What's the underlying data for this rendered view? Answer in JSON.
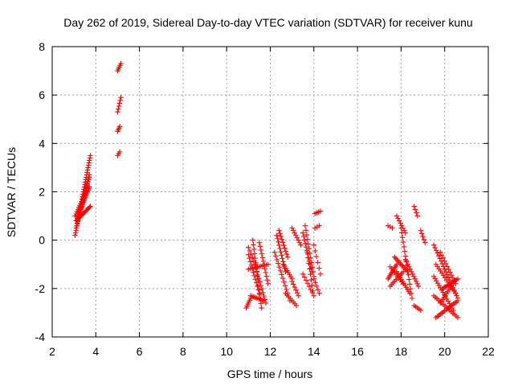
{
  "chart_data": {
    "type": "scatter",
    "title": "Day 262 of 2019, Sidereal Day-to-day VTEC variation (SDTVAR) for receiver kunu",
    "xlabel": "GPS time / hours",
    "ylabel": "SDTVAR / TECUs",
    "xlim": [
      2,
      22
    ],
    "ylim": [
      -4,
      8
    ],
    "xticks": [
      "2",
      "4",
      "6",
      "8",
      "10",
      "12",
      "14",
      "16",
      "18",
      "20",
      "22"
    ],
    "yticks": [
      "-4",
      "-2",
      "0",
      "2",
      "4",
      "6",
      "8"
    ],
    "grid": true,
    "marker": "+",
    "color": "#ff0000",
    "tracks": [
      {
        "x": [
          3.05,
          3.75
        ],
        "y": [
          0.2,
          3.5
        ],
        "n": 34
      },
      {
        "x": [
          3.1,
          3.7
        ],
        "y": [
          0.5,
          2.7
        ],
        "n": 26
      },
      {
        "x": [
          3.15,
          3.7
        ],
        "y": [
          0.9,
          2.2
        ],
        "n": 22
      },
      {
        "x": [
          3.1,
          3.75
        ],
        "y": [
          0.8,
          1.4
        ],
        "n": 16
      },
      {
        "x": [
          3.25,
          3.7
        ],
        "y": [
          1.2,
          2.6
        ],
        "n": 16
      },
      {
        "x": [
          3.05,
          3.35
        ],
        "y": [
          1.0,
          1.6
        ],
        "n": 8
      },
      {
        "x": [
          5.0,
          5.15
        ],
        "y": [
          7.0,
          7.3
        ],
        "n": 5
      },
      {
        "x": [
          5.0,
          5.15
        ],
        "y": [
          5.3,
          5.9
        ],
        "n": 6
      },
      {
        "x": [
          5.0,
          5.1
        ],
        "y": [
          4.5,
          4.7
        ],
        "n": 4
      },
      {
        "x": [
          5.0,
          5.1
        ],
        "y": [
          3.5,
          3.65
        ],
        "n": 3
      },
      {
        "x": [
          10.9,
          11.1
        ],
        "y": [
          -2.8,
          -2.4
        ],
        "n": 6
      },
      {
        "x": [
          11.0,
          11.5
        ],
        "y": [
          -0.6,
          -2.2
        ],
        "n": 12
      },
      {
        "x": [
          11.2,
          11.6
        ],
        "y": [
          0.0,
          -2.8
        ],
        "n": 16
      },
      {
        "x": [
          11.3,
          11.8
        ],
        "y": [
          -1.0,
          -2.6
        ],
        "n": 12
      },
      {
        "x": [
          11.5,
          11.9
        ],
        "y": [
          -0.1,
          -1.8
        ],
        "n": 12
      },
      {
        "x": [
          11.0,
          11.9
        ],
        "y": [
          -1.2,
          -1.0
        ],
        "n": 12
      },
      {
        "x": [
          11.1,
          11.7
        ],
        "y": [
          -2.3,
          -2.5
        ],
        "n": 10
      },
      {
        "x": [
          11.0,
          11.3
        ],
        "y": [
          -0.3,
          -1.0
        ],
        "n": 6
      },
      {
        "x": [
          12.2,
          12.9
        ],
        "y": [
          -0.5,
          -2.5
        ],
        "n": 14
      },
      {
        "x": [
          12.3,
          12.7
        ],
        "y": [
          0.2,
          -1.3
        ],
        "n": 12
      },
      {
        "x": [
          12.4,
          12.8
        ],
        "y": [
          0.4,
          -0.7
        ],
        "n": 10
      },
      {
        "x": [
          12.6,
          13.0
        ],
        "y": [
          -1.0,
          -1.6
        ],
        "n": 8
      },
      {
        "x": [
          12.7,
          13.2
        ],
        "y": [
          -2.2,
          -2.7
        ],
        "n": 8
      },
      {
        "x": [
          13.0,
          13.4
        ],
        "y": [
          0.5,
          -0.2
        ],
        "n": 8
      },
      {
        "x": [
          13.0,
          13.3
        ],
        "y": [
          -1.7,
          -2.3
        ],
        "n": 6
      },
      {
        "x": [
          13.5,
          13.9
        ],
        "y": [
          0.3,
          -1.3
        ],
        "n": 12
      },
      {
        "x": [
          13.6,
          14.0
        ],
        "y": [
          0.6,
          -1.5
        ],
        "n": 12
      },
      {
        "x": [
          13.5,
          14.0
        ],
        "y": [
          -1.4,
          -2.3
        ],
        "n": 8
      },
      {
        "x": [
          13.7,
          13.95
        ],
        "y": [
          -0.5,
          -2.1
        ],
        "n": 8
      },
      {
        "x": [
          14.0,
          14.3
        ],
        "y": [
          -0.2,
          -1.4
        ],
        "n": 6
      },
      {
        "x": [
          14.0,
          14.25
        ],
        "y": [
          -1.6,
          -2.2
        ],
        "n": 5
      },
      {
        "x": [
          14.05,
          14.3
        ],
        "y": [
          1.1,
          1.2
        ],
        "n": 4
      },
      {
        "x": [
          14.05,
          14.25
        ],
        "y": [
          0.5,
          0.6
        ],
        "n": 3
      },
      {
        "x": [
          17.4,
          17.6
        ],
        "y": [
          0.6,
          0.5
        ],
        "n": 3
      },
      {
        "x": [
          17.4,
          17.8
        ],
        "y": [
          -1.6,
          -1.0
        ],
        "n": 10
      },
      {
        "x": [
          17.7,
          18.3
        ],
        "y": [
          -0.7,
          -1.3
        ],
        "n": 12
      },
      {
        "x": [
          17.8,
          18.2
        ],
        "y": [
          1.0,
          0.3
        ],
        "n": 8
      },
      {
        "x": [
          17.8,
          18.4
        ],
        "y": [
          -1.3,
          -2.2
        ],
        "n": 12
      },
      {
        "x": [
          17.5,
          18.1
        ],
        "y": [
          -1.9,
          -1.3
        ],
        "n": 10
      },
      {
        "x": [
          18.0,
          18.5
        ],
        "y": [
          0.5,
          -2.4
        ],
        "n": 16
      },
      {
        "x": [
          17.5,
          18.1
        ],
        "y": [
          -1.1,
          -1.8
        ],
        "n": 10
      },
      {
        "x": [
          18.2,
          18.8
        ],
        "y": [
          -0.8,
          -1.9
        ],
        "n": 12
      },
      {
        "x": [
          18.6,
          18.75
        ],
        "y": [
          1.4,
          1.0
        ],
        "n": 4
      },
      {
        "x": [
          18.6,
          18.9
        ],
        "y": [
          -2.7,
          -2.9
        ],
        "n": 5
      },
      {
        "x": [
          18.9,
          19.1
        ],
        "y": [
          0.4,
          -0.1
        ],
        "n": 5
      },
      {
        "x": [
          19.5,
          20.0
        ],
        "y": [
          -0.2,
          -1.2
        ],
        "n": 10
      },
      {
        "x": [
          19.8,
          20.5
        ],
        "y": [
          -0.5,
          -1.8
        ],
        "n": 12
      },
      {
        "x": [
          19.5,
          20.4
        ],
        "y": [
          -1.5,
          -2.9
        ],
        "n": 16
      },
      {
        "x": [
          19.6,
          20.6
        ],
        "y": [
          -3.2,
          -2.5
        ],
        "n": 16
      },
      {
        "x": [
          19.5,
          20.6
        ],
        "y": [
          -2.3,
          -3.2
        ],
        "n": 16
      },
      {
        "x": [
          20.0,
          20.6
        ],
        "y": [
          -1.2,
          -2.4
        ],
        "n": 12
      },
      {
        "x": [
          19.9,
          20.6
        ],
        "y": [
          -2.0,
          -1.6
        ],
        "n": 12
      },
      {
        "x": [
          19.6,
          20.5
        ],
        "y": [
          -1.0,
          -2.2
        ],
        "n": 14
      },
      {
        "x": [
          19.8,
          20.3
        ],
        "y": [
          -2.6,
          -1.9
        ],
        "n": 10
      }
    ]
  }
}
